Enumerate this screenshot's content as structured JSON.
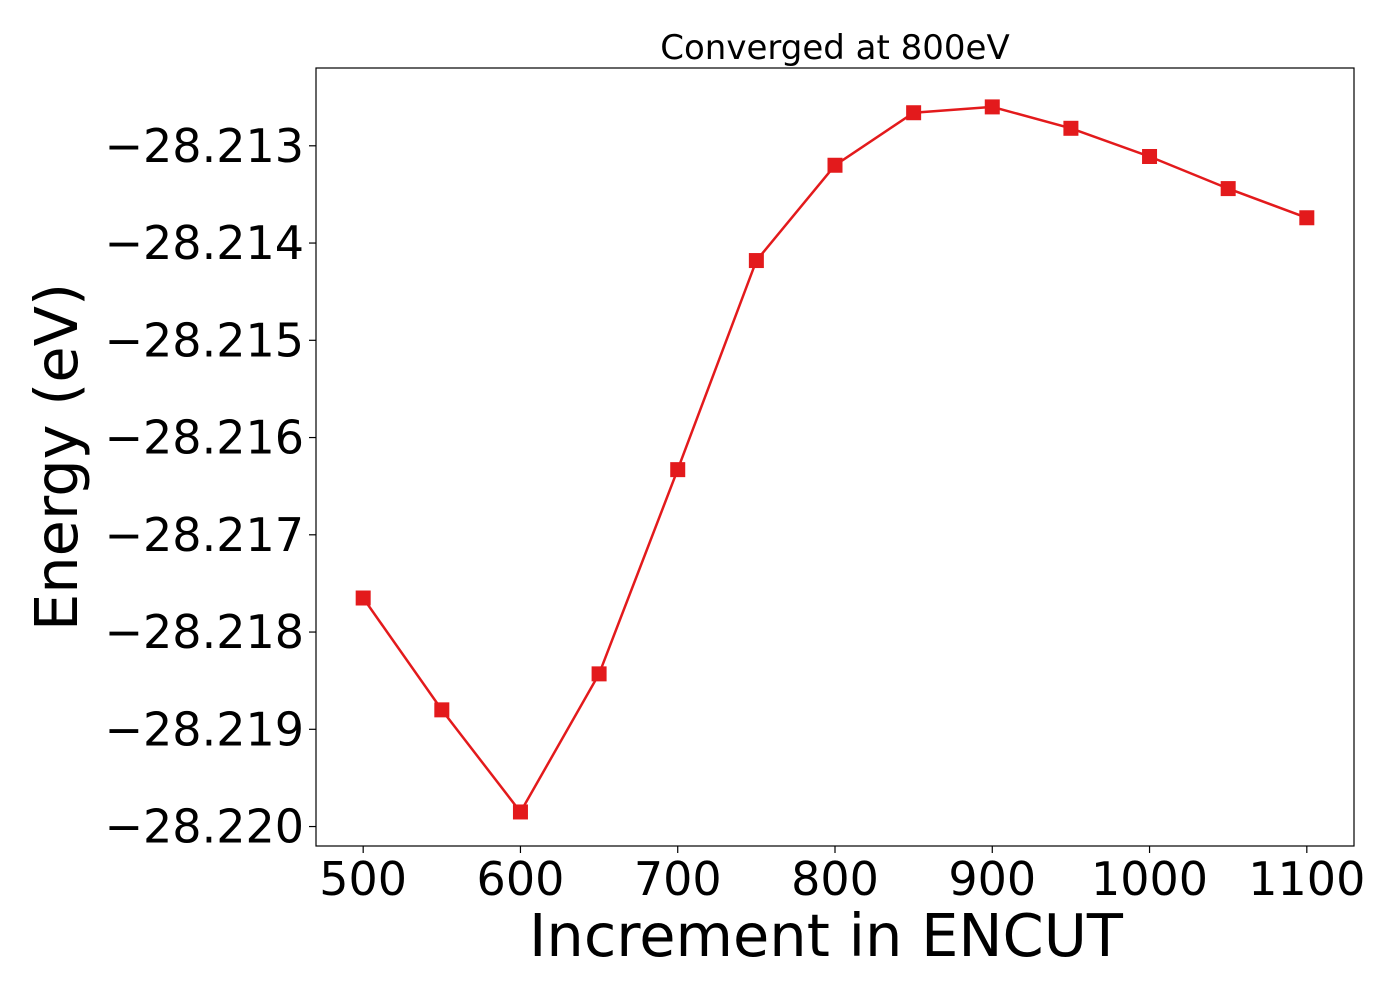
{
  "chart_data": {
    "type": "line",
    "title": "Converged at 800eV",
    "xlabel": "Increment in ENCUT",
    "ylabel": "Energy (eV)",
    "x": [
      500,
      550,
      600,
      650,
      700,
      750,
      800,
      850,
      900,
      950,
      1000,
      1050,
      1100
    ],
    "series": [
      {
        "values": [
          -28.21765,
          -28.2188,
          -28.21985,
          -28.21843,
          -28.21633,
          -28.21418,
          -28.2132,
          -28.21266,
          -28.2126,
          -28.21282,
          -28.21311,
          -28.21344,
          -28.21374
        ],
        "color": "#e31a1c",
        "marker": "square"
      }
    ],
    "xticks": [
      500,
      600,
      700,
      800,
      900,
      1000,
      1100
    ],
    "xtick_labels": [
      "500",
      "600",
      "700",
      "800",
      "900",
      "1000",
      "1100"
    ],
    "yticks": [
      -28.213,
      -28.214,
      -28.215,
      -28.216,
      -28.217,
      -28.218,
      -28.219,
      -28.22
    ],
    "ytick_labels": [
      "−28.213",
      "−28.214",
      "−28.215",
      "−28.216",
      "−28.217",
      "−28.218",
      "−28.219",
      "−28.220"
    ],
    "xlim": [
      470,
      1130
    ],
    "ylim": [
      -28.2202,
      -28.2122
    ],
    "grid": false,
    "legend": "none"
  }
}
